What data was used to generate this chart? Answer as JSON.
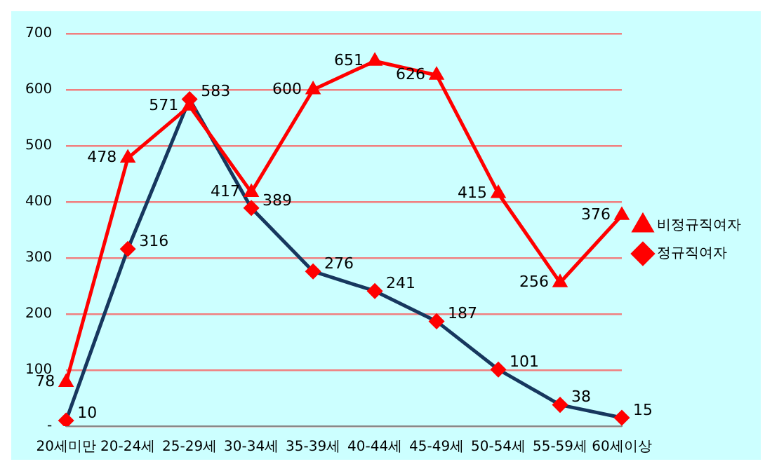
{
  "chart_data": {
    "type": "line",
    "categories": [
      "20세미만",
      "20-24세",
      "25-29세",
      "30-34세",
      "35-39세",
      "40-44세",
      "45-49세",
      "50-54세",
      "55-59세",
      "60세이상"
    ],
    "series": [
      {
        "name": "비정규직여자",
        "color": "#ff0000",
        "marker": "triangle",
        "values": [
          78,
          478,
          571,
          417,
          600,
          651,
          626,
          415,
          256,
          376
        ]
      },
      {
        "name": "정규직여자",
        "color": "#17375e",
        "marker": "diamond",
        "values": [
          10,
          316,
          583,
          389,
          276,
          241,
          187,
          101,
          38,
          15
        ]
      }
    ],
    "ylim": [
      0,
      700
    ],
    "yticks": [
      {
        "value": 0,
        "label": "-"
      },
      100,
      200,
      300,
      400,
      500,
      600,
      700
    ],
    "grid": "y",
    "legend": "right",
    "data_labels": true
  }
}
